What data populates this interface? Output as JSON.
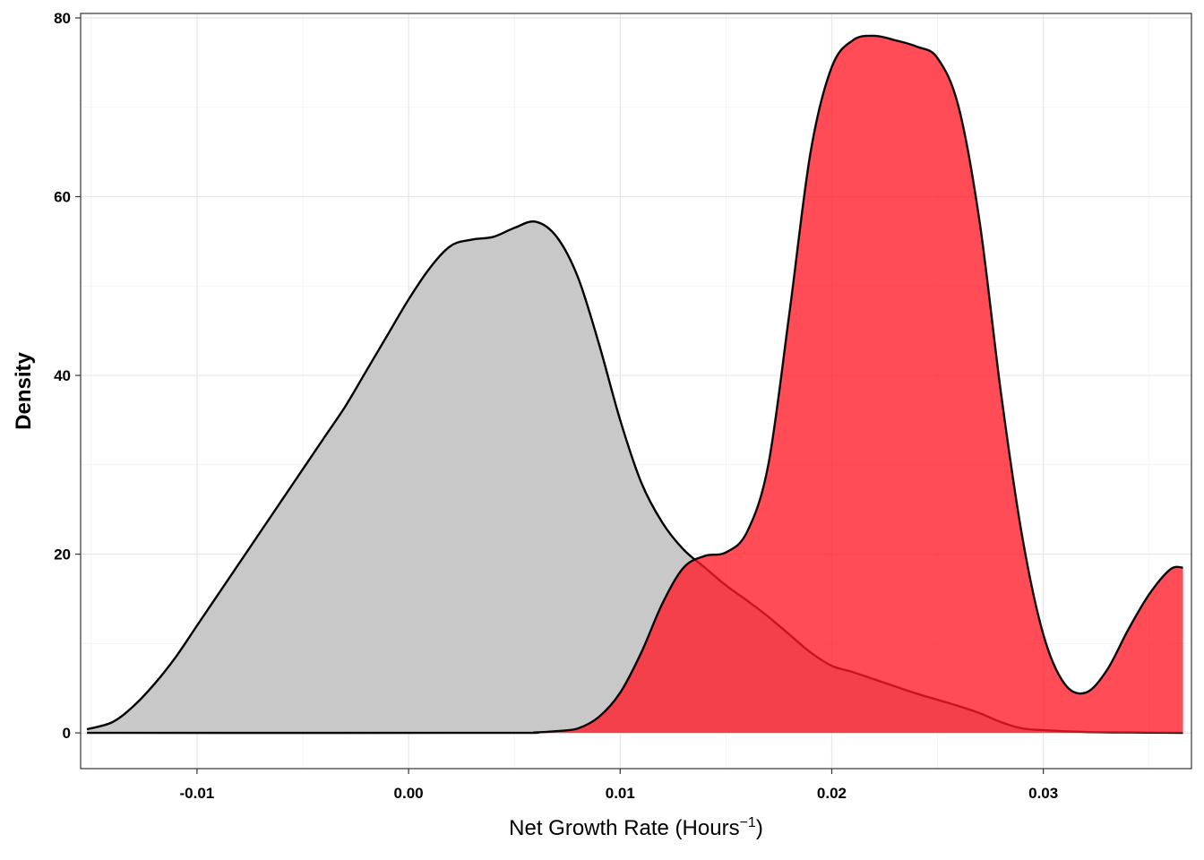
{
  "chart_data": {
    "type": "area",
    "xlabel": "Net Growth Rate (Hours",
    "xlabel_superscript": "−1",
    "xlabel_suffix": ")",
    "ylabel": "Density",
    "xlim": [
      -0.0155,
      0.037
    ],
    "ylim": [
      -4,
      80.5
    ],
    "x_ticks": [
      -0.01,
      0.0,
      0.01,
      0.02,
      0.03
    ],
    "x_tick_labels": [
      "-0.01",
      "0.00",
      "0.01",
      "0.02",
      "0.03"
    ],
    "y_ticks": [
      0,
      20,
      40,
      60,
      80
    ],
    "y_tick_labels": [
      "0",
      "20",
      "40",
      "60",
      "80"
    ],
    "grid": true,
    "legend": "none",
    "series": [
      {
        "fill": "#c8c8c8",
        "opacity": 1.0,
        "points": [
          [
            -0.0152,
            0.4
          ],
          [
            -0.014,
            1.2
          ],
          [
            -0.013,
            3.0
          ],
          [
            -0.012,
            5.5
          ],
          [
            -0.011,
            8.5
          ],
          [
            -0.01,
            12.0
          ],
          [
            -0.009,
            15.5
          ],
          [
            -0.008,
            19.0
          ],
          [
            -0.007,
            22.5
          ],
          [
            -0.006,
            26.0
          ],
          [
            -0.005,
            29.5
          ],
          [
            -0.004,
            33.0
          ],
          [
            -0.003,
            36.5
          ],
          [
            -0.002,
            40.5
          ],
          [
            -0.001,
            44.5
          ],
          [
            0.0,
            48.5
          ],
          [
            0.001,
            52.0
          ],
          [
            0.002,
            54.5
          ],
          [
            0.003,
            55.2
          ],
          [
            0.004,
            55.5
          ],
          [
            0.005,
            56.5
          ],
          [
            0.006,
            57.2
          ],
          [
            0.007,
            55.5
          ],
          [
            0.008,
            51.0
          ],
          [
            0.009,
            43.5
          ],
          [
            0.01,
            35.0
          ],
          [
            0.011,
            28.0
          ],
          [
            0.012,
            23.5
          ],
          [
            0.013,
            20.5
          ],
          [
            0.014,
            18.5
          ],
          [
            0.015,
            16.5
          ],
          [
            0.016,
            14.8
          ],
          [
            0.017,
            13.0
          ],
          [
            0.018,
            11.0
          ],
          [
            0.019,
            9.0
          ],
          [
            0.02,
            7.5
          ],
          [
            0.021,
            6.8
          ],
          [
            0.022,
            6.0
          ],
          [
            0.023,
            5.2
          ],
          [
            0.024,
            4.4
          ],
          [
            0.025,
            3.7
          ],
          [
            0.026,
            3.0
          ],
          [
            0.027,
            2.2
          ],
          [
            0.028,
            1.2
          ],
          [
            0.029,
            0.5
          ],
          [
            0.03,
            0.3
          ],
          [
            0.032,
            0.1
          ],
          [
            0.034,
            0.05
          ],
          [
            0.0366,
            0.0
          ]
        ]
      },
      {
        "fill": "#ff1a26",
        "opacity": 0.78,
        "points": [
          [
            -0.0152,
            0.0
          ],
          [
            0.004,
            0.0
          ],
          [
            0.006,
            0.05
          ],
          [
            0.007,
            0.2
          ],
          [
            0.008,
            0.5
          ],
          [
            0.009,
            1.8
          ],
          [
            0.01,
            4.5
          ],
          [
            0.011,
            9.0
          ],
          [
            0.012,
            14.5
          ],
          [
            0.013,
            18.5
          ],
          [
            0.014,
            19.8
          ],
          [
            0.015,
            20.2
          ],
          [
            0.016,
            22.5
          ],
          [
            0.017,
            30.0
          ],
          [
            0.018,
            47.0
          ],
          [
            0.019,
            65.0
          ],
          [
            0.02,
            74.5
          ],
          [
            0.021,
            77.5
          ],
          [
            0.022,
            78.0
          ],
          [
            0.023,
            77.5
          ],
          [
            0.024,
            76.8
          ],
          [
            0.025,
            75.5
          ],
          [
            0.026,
            70.0
          ],
          [
            0.027,
            57.0
          ],
          [
            0.028,
            38.0
          ],
          [
            0.029,
            22.0
          ],
          [
            0.03,
            11.0
          ],
          [
            0.031,
            5.5
          ],
          [
            0.032,
            4.5
          ],
          [
            0.033,
            7.0
          ],
          [
            0.034,
            11.5
          ],
          [
            0.035,
            15.5
          ],
          [
            0.036,
            18.3
          ],
          [
            0.0366,
            18.5
          ]
        ]
      }
    ]
  }
}
